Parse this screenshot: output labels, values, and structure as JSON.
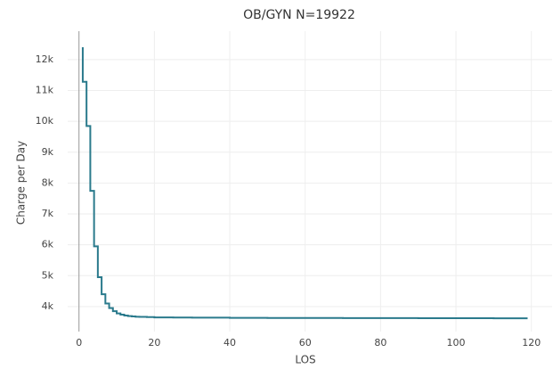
{
  "chart_data": {
    "type": "line",
    "title": "OB/GYN N=19922",
    "x_label": "LOS",
    "y_label": "Charge per Day",
    "line_shape": "vh",
    "grid": true,
    "x": [
      1,
      2,
      3,
      4,
      5,
      6,
      7,
      8,
      9,
      10,
      11,
      12,
      13,
      14,
      15,
      16,
      18,
      20,
      25,
      30,
      40,
      50,
      60,
      70,
      80,
      90,
      100,
      110,
      119
    ],
    "series": [
      {
        "color": "#2a7a8c",
        "values": [
          12400,
          11280,
          9850,
          7750,
          5950,
          4950,
          4400,
          4100,
          3950,
          3850,
          3780,
          3740,
          3710,
          3690,
          3680,
          3670,
          3665,
          3660,
          3650,
          3645,
          3640,
          3635,
          3632,
          3630,
          3628,
          3626,
          3624,
          3622,
          3620
        ]
      }
    ],
    "xlim": [
      -3,
      125.5
    ],
    "xticks": [
      0,
      20,
      40,
      60,
      80,
      100,
      120
    ],
    "ylim": [
      3190,
      12920
    ],
    "yticks": [
      {
        "value": 4000,
        "label": "4k"
      },
      {
        "value": 5000,
        "label": "5k"
      },
      {
        "value": 6000,
        "label": "6k"
      },
      {
        "value": 7000,
        "label": "7k"
      },
      {
        "value": 8000,
        "label": "8k"
      },
      {
        "value": 9000,
        "label": "9k"
      },
      {
        "value": 10000,
        "label": "10k"
      },
      {
        "value": 11000,
        "label": "11k"
      },
      {
        "value": 12000,
        "label": "12k"
      }
    ]
  }
}
